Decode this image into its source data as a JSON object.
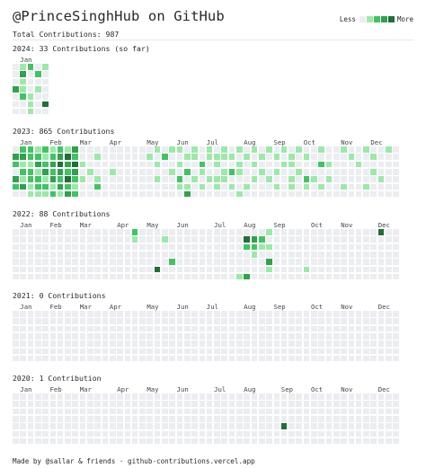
{
  "header": {
    "title": "@PrinceSinghHub on GitHub",
    "total": "Total Contributions: 987",
    "legend_less": "Less",
    "legend_more": "More"
  },
  "colors": {
    "level0": "#ebedf0",
    "level1": "#9be9a8",
    "level2": "#40c463",
    "level3": "#30a14e",
    "level4": "#216e39"
  },
  "years": [
    {
      "title": "2024: 33 Contributions (so far)",
      "months": [
        {
          "label": "Jan",
          "week": 1
        }
      ],
      "weeks": [
        [
          0,
          0,
          0,
          3,
          0,
          0,
          0
        ],
        [
          1,
          3,
          1,
          1,
          2,
          0,
          0
        ],
        [
          2,
          0,
          0,
          0,
          1,
          1,
          1
        ],
        [
          0,
          2,
          0,
          1,
          0,
          0,
          0
        ],
        [
          1,
          0,
          0,
          0,
          0,
          4,
          0
        ]
      ]
    },
    {
      "title": "2023: 865 Contributions",
      "months": [
        {
          "label": "Jan",
          "week": 1
        },
        {
          "label": "Feb",
          "week": 5
        },
        {
          "label": "Mar",
          "week": 9
        },
        {
          "label": "Apr",
          "week": 13
        },
        {
          "label": "May",
          "week": 18
        },
        {
          "label": "Jun",
          "week": 22
        },
        {
          "label": "Jul",
          "week": 26
        },
        {
          "label": "Aug",
          "week": 31
        },
        {
          "label": "Sep",
          "week": 35
        },
        {
          "label": "Oct",
          "week": 39
        },
        {
          "label": "Nov",
          "week": 44
        },
        {
          "label": "Dec",
          "week": 48
        }
      ],
      "weeks": [
        [
          0,
          3,
          2,
          0,
          3,
          2,
          0
        ],
        [
          2,
          3,
          1,
          2,
          1,
          3,
          0
        ],
        [
          2,
          2,
          1,
          2,
          2,
          1,
          1
        ],
        [
          1,
          2,
          3,
          1,
          2,
          2,
          1
        ],
        [
          2,
          1,
          2,
          3,
          1,
          2,
          1
        ],
        [
          1,
          2,
          3,
          2,
          3,
          1,
          2
        ],
        [
          2,
          3,
          4,
          3,
          2,
          3,
          1
        ],
        [
          1,
          4,
          3,
          2,
          4,
          2,
          3
        ],
        [
          3,
          2,
          4,
          3,
          2,
          1,
          2
        ],
        [
          0,
          0,
          1,
          0,
          1,
          0,
          0
        ],
        [
          0,
          0,
          0,
          1,
          0,
          0,
          0
        ],
        [
          0,
          1,
          0,
          0,
          1,
          2,
          0
        ],
        [
          0,
          0,
          0,
          0,
          0,
          0,
          0
        ],
        [
          0,
          0,
          0,
          1,
          0,
          0,
          0
        ],
        [
          0,
          0,
          0,
          0,
          0,
          0,
          0
        ],
        [
          0,
          0,
          0,
          0,
          0,
          0,
          0
        ],
        [
          0,
          0,
          0,
          0,
          0,
          0,
          0
        ],
        [
          0,
          0,
          0,
          0,
          0,
          0,
          0
        ],
        [
          0,
          1,
          0,
          0,
          0,
          0,
          0
        ],
        [
          1,
          0,
          1,
          0,
          1,
          0,
          0
        ],
        [
          0,
          2,
          0,
          0,
          0,
          0,
          0
        ],
        [
          1,
          0,
          0,
          1,
          0,
          0,
          0
        ],
        [
          1,
          0,
          1,
          0,
          2,
          1,
          0
        ],
        [
          0,
          1,
          0,
          2,
          0,
          1,
          3
        ],
        [
          1,
          1,
          0,
          0,
          1,
          0,
          0
        ],
        [
          0,
          0,
          2,
          1,
          0,
          1,
          0
        ],
        [
          1,
          1,
          0,
          0,
          1,
          0,
          0
        ],
        [
          0,
          1,
          1,
          0,
          1,
          1,
          0
        ],
        [
          1,
          1,
          0,
          1,
          1,
          0,
          0
        ],
        [
          0,
          1,
          0,
          2,
          0,
          1,
          0
        ],
        [
          1,
          0,
          1,
          1,
          0,
          0,
          1
        ],
        [
          0,
          1,
          0,
          0,
          0,
          1,
          0
        ],
        [
          1,
          0,
          1,
          0,
          1,
          0,
          0
        ],
        [
          0,
          1,
          0,
          1,
          0,
          0,
          0
        ],
        [
          1,
          0,
          0,
          0,
          1,
          0,
          0
        ],
        [
          0,
          1,
          0,
          1,
          0,
          1,
          0
        ],
        [
          1,
          0,
          1,
          0,
          0,
          0,
          0
        ],
        [
          0,
          1,
          1,
          0,
          1,
          1,
          0
        ],
        [
          1,
          0,
          0,
          1,
          0,
          0,
          0
        ],
        [
          0,
          1,
          0,
          0,
          2,
          1,
          0
        ],
        [
          0,
          0,
          0,
          0,
          1,
          0,
          0
        ],
        [
          1,
          0,
          2,
          0,
          0,
          1,
          0
        ],
        [
          0,
          0,
          1,
          0,
          1,
          0,
          0
        ],
        [
          0,
          0,
          0,
          0,
          0,
          0,
          0
        ],
        [
          1,
          0,
          0,
          0,
          0,
          1,
          0
        ],
        [
          0,
          1,
          0,
          0,
          0,
          0,
          0
        ],
        [
          0,
          0,
          1,
          0,
          0,
          0,
          0
        ],
        [
          1,
          0,
          0,
          0,
          0,
          1,
          0
        ],
        [
          0,
          1,
          0,
          1,
          0,
          0,
          0
        ],
        [
          0,
          0,
          0,
          0,
          1,
          0,
          0
        ],
        [
          1,
          0,
          0,
          0,
          0,
          0,
          0
        ],
        [
          0,
          0,
          0,
          0,
          0,
          0,
          0
        ]
      ]
    },
    {
      "title": "2022: 88 Contributions",
      "months": [
        {
          "label": "Jan",
          "week": 1
        },
        {
          "label": "Feb",
          "week": 5
        },
        {
          "label": "Mar",
          "week": 9
        },
        {
          "label": "Apr",
          "week": 14
        },
        {
          "label": "May",
          "week": 18
        },
        {
          "label": "Jun",
          "week": 22
        },
        {
          "label": "Jul",
          "week": 27
        },
        {
          "label": "Aug",
          "week": 31
        },
        {
          "label": "Sep",
          "week": 35
        },
        {
          "label": "Oct",
          "week": 40
        },
        {
          "label": "Nov",
          "week": 44
        },
        {
          "label": "Dec",
          "week": 49
        }
      ],
      "weeks": [
        [
          0,
          0,
          0,
          0,
          0,
          0,
          0
        ],
        [
          0,
          0,
          0,
          0,
          0,
          0,
          0
        ],
        [
          0,
          0,
          0,
          0,
          0,
          0,
          0
        ],
        [
          0,
          0,
          0,
          0,
          0,
          0,
          0
        ],
        [
          0,
          0,
          0,
          0,
          0,
          0,
          0
        ],
        [
          0,
          0,
          0,
          0,
          0,
          0,
          0
        ],
        [
          0,
          0,
          0,
          0,
          0,
          0,
          0
        ],
        [
          0,
          0,
          0,
          0,
          0,
          0,
          0
        ],
        [
          0,
          0,
          0,
          0,
          0,
          0,
          0
        ],
        [
          0,
          0,
          0,
          0,
          0,
          0,
          0
        ],
        [
          0,
          0,
          0,
          0,
          0,
          0,
          0
        ],
        [
          0,
          0,
          0,
          0,
          0,
          0,
          0
        ],
        [
          0,
          0,
          0,
          0,
          0,
          0,
          0
        ],
        [
          0,
          0,
          0,
          0,
          0,
          0,
          0
        ],
        [
          0,
          0,
          0,
          0,
          0,
          0,
          0
        ],
        [
          0,
          0,
          0,
          0,
          0,
          0,
          0
        ],
        [
          2,
          1,
          0,
          0,
          0,
          0,
          0
        ],
        [
          0,
          0,
          0,
          0,
          0,
          0,
          0
        ],
        [
          0,
          0,
          0,
          0,
          0,
          0,
          0
        ],
        [
          0,
          0,
          0,
          0,
          0,
          4,
          0
        ],
        [
          0,
          1,
          0,
          0,
          0,
          0,
          0
        ],
        [
          0,
          0,
          0,
          0,
          2,
          0,
          0
        ],
        [
          0,
          0,
          0,
          0,
          0,
          0,
          0
        ],
        [
          0,
          0,
          0,
          0,
          0,
          0,
          0
        ],
        [
          0,
          0,
          0,
          0,
          0,
          0,
          0
        ],
        [
          0,
          0,
          0,
          0,
          0,
          0,
          0
        ],
        [
          0,
          0,
          0,
          0,
          0,
          0,
          0
        ],
        [
          0,
          0,
          0,
          0,
          0,
          0,
          0
        ],
        [
          0,
          0,
          0,
          0,
          0,
          0,
          0
        ],
        [
          0,
          0,
          0,
          0,
          0,
          0,
          0
        ],
        [
          0,
          0,
          0,
          0,
          0,
          0,
          1
        ],
        [
          0,
          4,
          2,
          0,
          0,
          0,
          3
        ],
        [
          0,
          3,
          2,
          1,
          0,
          0,
          0
        ],
        [
          0,
          2,
          1,
          0,
          0,
          0,
          0
        ],
        [
          1,
          0,
          1,
          0,
          3,
          1,
          0
        ],
        [
          0,
          0,
          0,
          0,
          0,
          0,
          0
        ],
        [
          0,
          0,
          0,
          0,
          0,
          0,
          0
        ],
        [
          0,
          0,
          0,
          0,
          0,
          0,
          0
        ],
        [
          0,
          0,
          0,
          0,
          0,
          0,
          0
        ],
        [
          0,
          0,
          0,
          0,
          0,
          1,
          0
        ],
        [
          0,
          0,
          0,
          0,
          0,
          0,
          0
        ],
        [
          0,
          0,
          0,
          0,
          0,
          0,
          0
        ],
        [
          0,
          0,
          0,
          0,
          0,
          0,
          0
        ],
        [
          0,
          0,
          0,
          0,
          0,
          0,
          0
        ],
        [
          0,
          0,
          0,
          0,
          0,
          0,
          0
        ],
        [
          0,
          0,
          0,
          0,
          0,
          0,
          0
        ],
        [
          0,
          0,
          0,
          0,
          0,
          0,
          0
        ],
        [
          0,
          0,
          0,
          0,
          0,
          0,
          0
        ],
        [
          0,
          0,
          0,
          0,
          0,
          0,
          0
        ],
        [
          4,
          0,
          0,
          0,
          0,
          0,
          0
        ],
        [
          0,
          0,
          0,
          0,
          0,
          0,
          0
        ],
        [
          0,
          0,
          0,
          0,
          0,
          0,
          0
        ]
      ]
    },
    {
      "title": "2021: 0 Contributions",
      "months": [
        {
          "label": "Jan",
          "week": 1
        },
        {
          "label": "Feb",
          "week": 5
        },
        {
          "label": "Mar",
          "week": 9
        },
        {
          "label": "Apr",
          "week": 13
        },
        {
          "label": "May",
          "week": 18
        },
        {
          "label": "Jun",
          "week": 22
        },
        {
          "label": "Jul",
          "week": 26
        },
        {
          "label": "Aug",
          "week": 31
        },
        {
          "label": "Sep",
          "week": 35
        },
        {
          "label": "Oct",
          "week": 40
        },
        {
          "label": "Nov",
          "week": 44
        },
        {
          "label": "Dec",
          "week": 49
        }
      ],
      "weeks": []
    },
    {
      "title": "2020: 1 Contribution",
      "months": [
        {
          "label": "Jan",
          "week": 1
        },
        {
          "label": "Feb",
          "week": 5
        },
        {
          "label": "Mar",
          "week": 9
        },
        {
          "label": "Apr",
          "week": 14
        },
        {
          "label": "May",
          "week": 18
        },
        {
          "label": "Jun",
          "week": 22
        },
        {
          "label": "Jul",
          "week": 27
        },
        {
          "label": "Aug",
          "week": 31
        },
        {
          "label": "Sep",
          "week": 36
        },
        {
          "label": "Oct",
          "week": 40
        },
        {
          "label": "Nov",
          "week": 44
        },
        {
          "label": "Dec",
          "week": 49
        }
      ],
      "weeks": [],
      "highlight": {
        "week": 36,
        "day": 4,
        "level": 4
      }
    }
  ],
  "footer": "Made by @sallar & friends · github-contributions.vercel.app"
}
